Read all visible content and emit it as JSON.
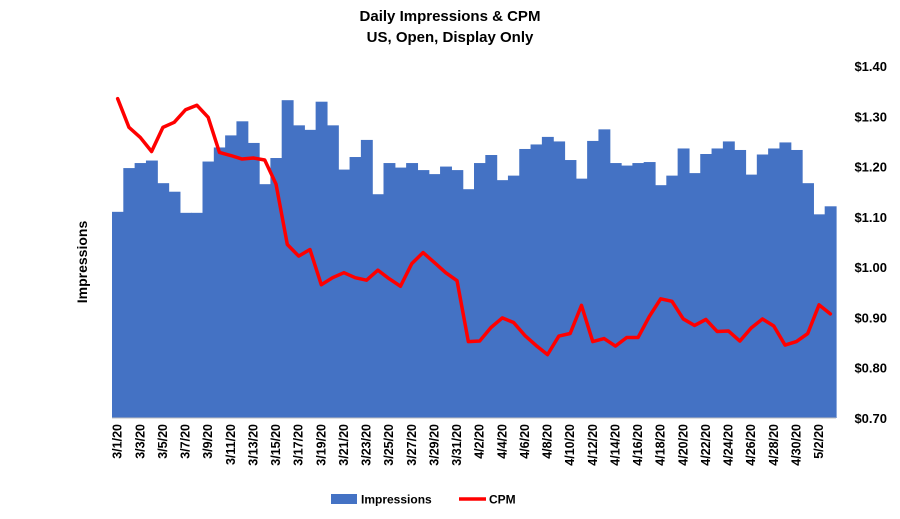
{
  "chart_data": {
    "type": "bar+line",
    "title": "Daily Impressions & CPM",
    "subtitle": "US, Open, Display Only",
    "ylabel": "Impressions",
    "y2_range": [
      0.7,
      1.4
    ],
    "y2_ticks": [
      "$1.40",
      "$1.30",
      "$1.20",
      "$1.10",
      "$1.00",
      "$0.90",
      "$0.80",
      "$0.70"
    ],
    "x_tick_labels": [
      "3/1/20",
      "3/3/20",
      "3/5/20",
      "3/7/20",
      "3/9/20",
      "3/11/20",
      "3/13/20",
      "3/15/20",
      "3/17/20",
      "3/19/20",
      "3/21/20",
      "3/23/20",
      "3/25/20",
      "3/27/20",
      "3/29/20",
      "3/31/20",
      "4/2/20",
      "4/4/20",
      "4/6/20",
      "4/8/20",
      "4/10/20",
      "4/12/20",
      "4/14/20",
      "4/16/20",
      "4/18/20",
      "4/20/20",
      "4/22/20",
      "4/24/20",
      "4/26/20",
      "4/28/20",
      "4/30/20",
      "5/2/20"
    ],
    "legend_position": "bottom",
    "grid": false,
    "series": [
      {
        "name": "Impressions",
        "kind": "bar",
        "color": "#4472C4",
        "axis": "left (unlabeled ticks)",
        "values": [
          1.11,
          1.197,
          1.207,
          1.212,
          1.167,
          1.15,
          1.108,
          1.108,
          1.21,
          1.238,
          1.262,
          1.29,
          1.247,
          1.165,
          1.217,
          1.332,
          1.282,
          1.273,
          1.329,
          1.282,
          1.194,
          1.219,
          1.253,
          1.145,
          1.207,
          1.198,
          1.207,
          1.193,
          1.185,
          1.2,
          1.193,
          1.155,
          1.207,
          1.223,
          1.173,
          1.182,
          1.235,
          1.244,
          1.259,
          1.25,
          1.213,
          1.176,
          1.251,
          1.274,
          1.207,
          1.202,
          1.207,
          1.209,
          1.163,
          1.182,
          1.236,
          1.187,
          1.225,
          1.236,
          1.25,
          1.233,
          1.184,
          1.224,
          1.236,
          1.248,
          1.233,
          1.167,
          1.105,
          1.121
        ]
      },
      {
        "name": "CPM",
        "kind": "line",
        "color": "#FF0000",
        "axis": "right",
        "values": [
          1.335,
          1.278,
          1.258,
          1.23,
          1.278,
          1.288,
          1.313,
          1.322,
          1.298,
          1.228,
          1.222,
          1.215,
          1.217,
          1.213,
          1.165,
          1.045,
          1.022,
          1.035,
          0.965,
          0.979,
          0.989,
          0.979,
          0.974,
          0.994,
          0.977,
          0.962,
          1.007,
          1.029,
          1.009,
          0.989,
          0.973,
          0.852,
          0.853,
          0.88,
          0.899,
          0.89,
          0.864,
          0.844,
          0.826,
          0.863,
          0.868,
          0.924,
          0.852,
          0.858,
          0.843,
          0.86,
          0.86,
          0.902,
          0.937,
          0.932,
          0.897,
          0.884,
          0.896,
          0.872,
          0.873,
          0.853,
          0.879,
          0.897,
          0.883,
          0.845,
          0.852,
          0.868,
          0.925,
          0.907
        ]
      }
    ]
  }
}
